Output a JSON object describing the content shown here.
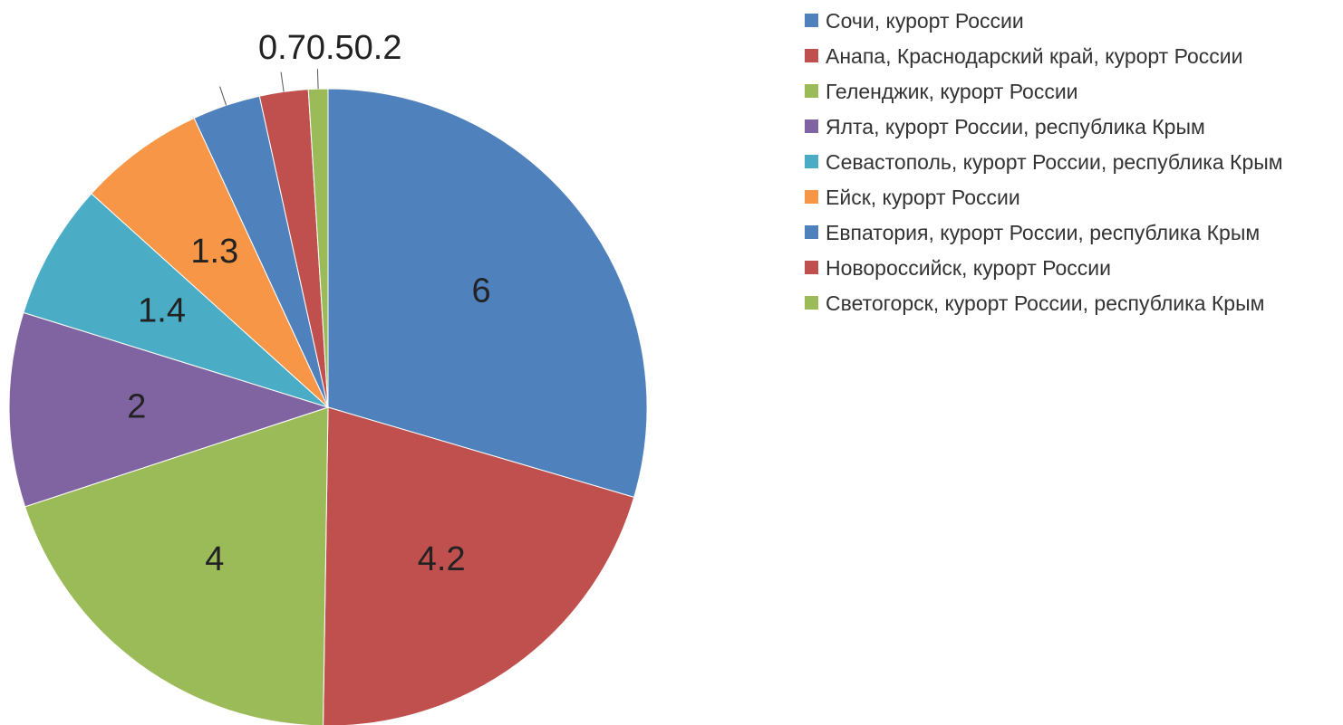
{
  "chart_data": {
    "type": "pie",
    "categories": [
      "Сочи, курорт России",
      "Анапа, Краснодарский край, курорт России",
      "Геленджик, курорт России",
      "Ялта, курорт России, республика Крым",
      "Севастополь, курорт России, республика Крым",
      "Ейск, курорт России",
      "Евпатория, курорт России, республика Крым",
      "Новороссийск, курорт России",
      "Светогорск, курорт России, республика Крым"
    ],
    "values": [
      6,
      4.2,
      4,
      2,
      1.4,
      1.3,
      0.7,
      0.5,
      0.2
    ],
    "colors": [
      "#4f81bd",
      "#c0504d",
      "#9bbb59",
      "#8064a2",
      "#4bacc6",
      "#f79646",
      "#4f81bd",
      "#c0504d",
      "#9bbb59"
    ],
    "legend": "right"
  }
}
